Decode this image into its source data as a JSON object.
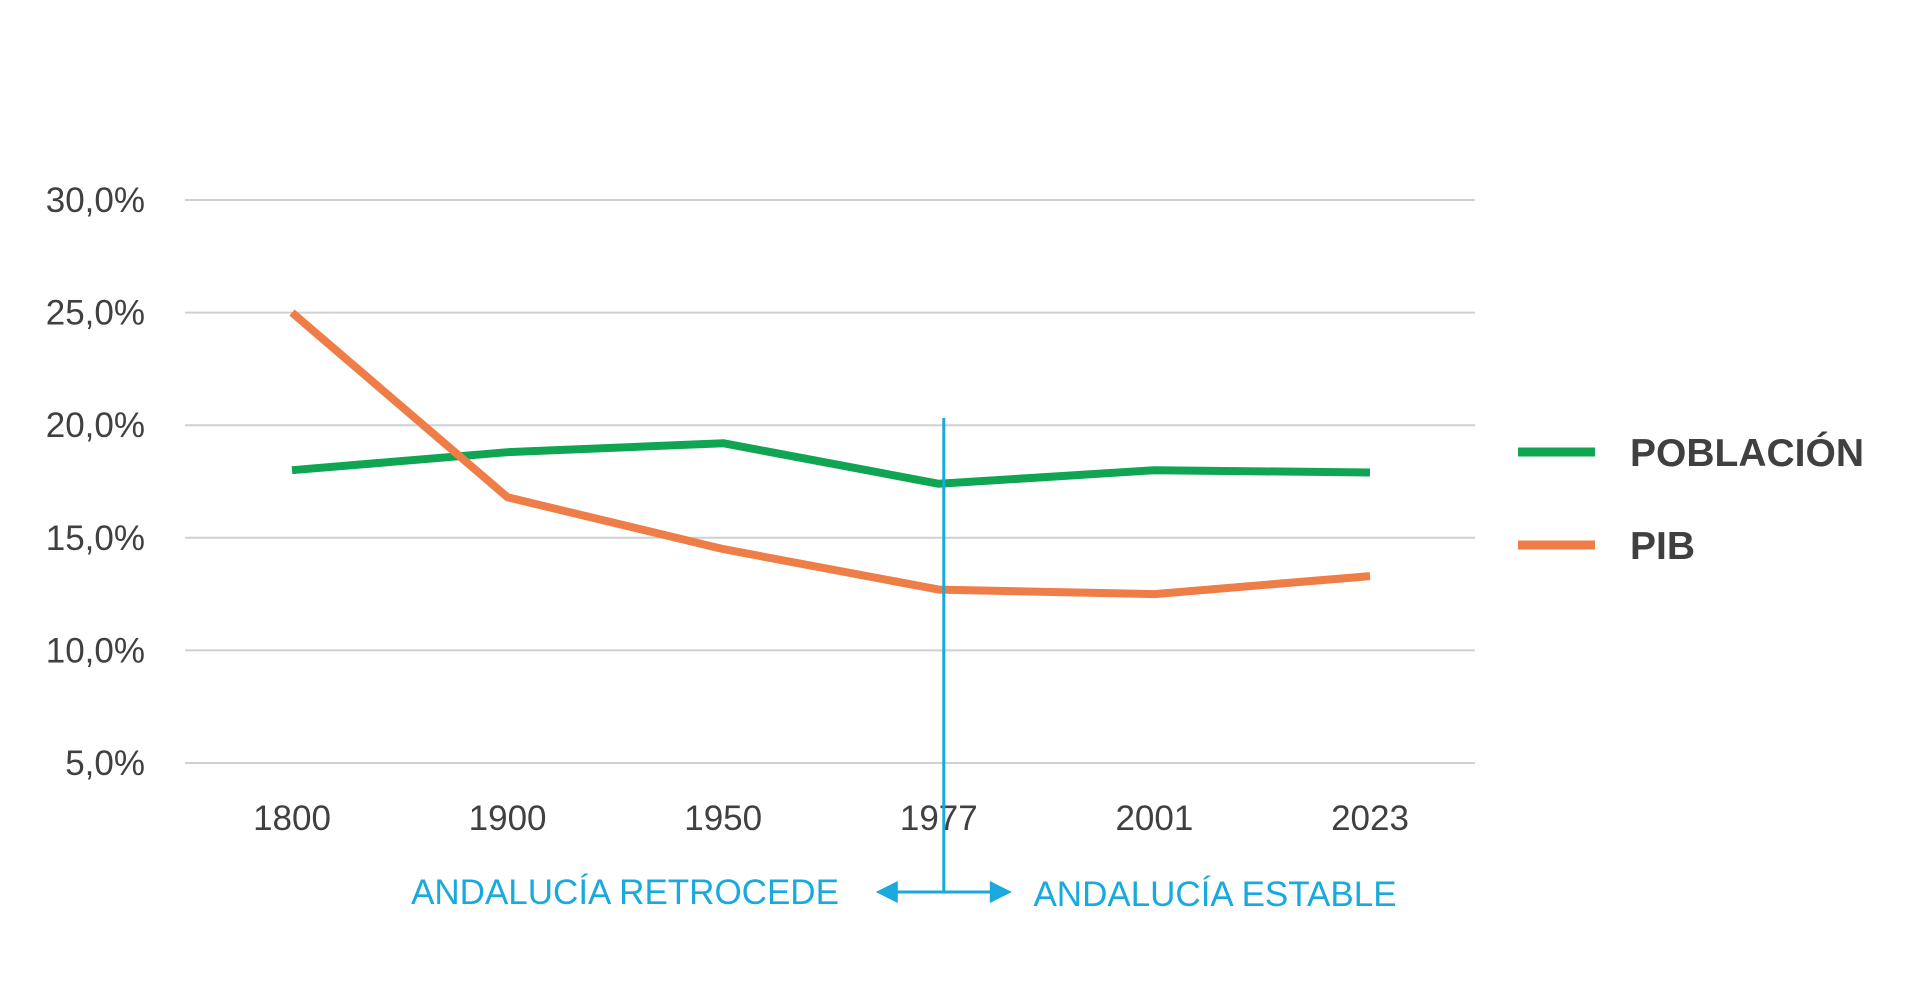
{
  "chart_data": {
    "type": "line",
    "title": "",
    "xlabel": "",
    "ylabel": "",
    "categories": [
      "1800",
      "1900",
      "1950",
      "1977",
      "2001",
      "2023"
    ],
    "y_ticks": [
      "5,0%",
      "10,0%",
      "15,0%",
      "20,0%",
      "25,0%",
      "30,0%"
    ],
    "ylim": [
      5,
      30
    ],
    "grid": true,
    "legend_position": "right",
    "series": [
      {
        "name": "POBLACIÓN",
        "color": "#10a553",
        "values": [
          18.0,
          18.8,
          19.2,
          17.4,
          18.0,
          17.9
        ]
      },
      {
        "name": "PIB",
        "color": "#ee7d47",
        "values": [
          25.0,
          16.8,
          14.5,
          12.7,
          12.5,
          13.3
        ]
      }
    ],
    "annotations": {
      "divider_category": "1977",
      "divider_color": "#1aa9dc",
      "left_label": "ANDALUCÍA RETROCEDE",
      "right_label": "ANDALUCÍA ESTABLE"
    }
  }
}
